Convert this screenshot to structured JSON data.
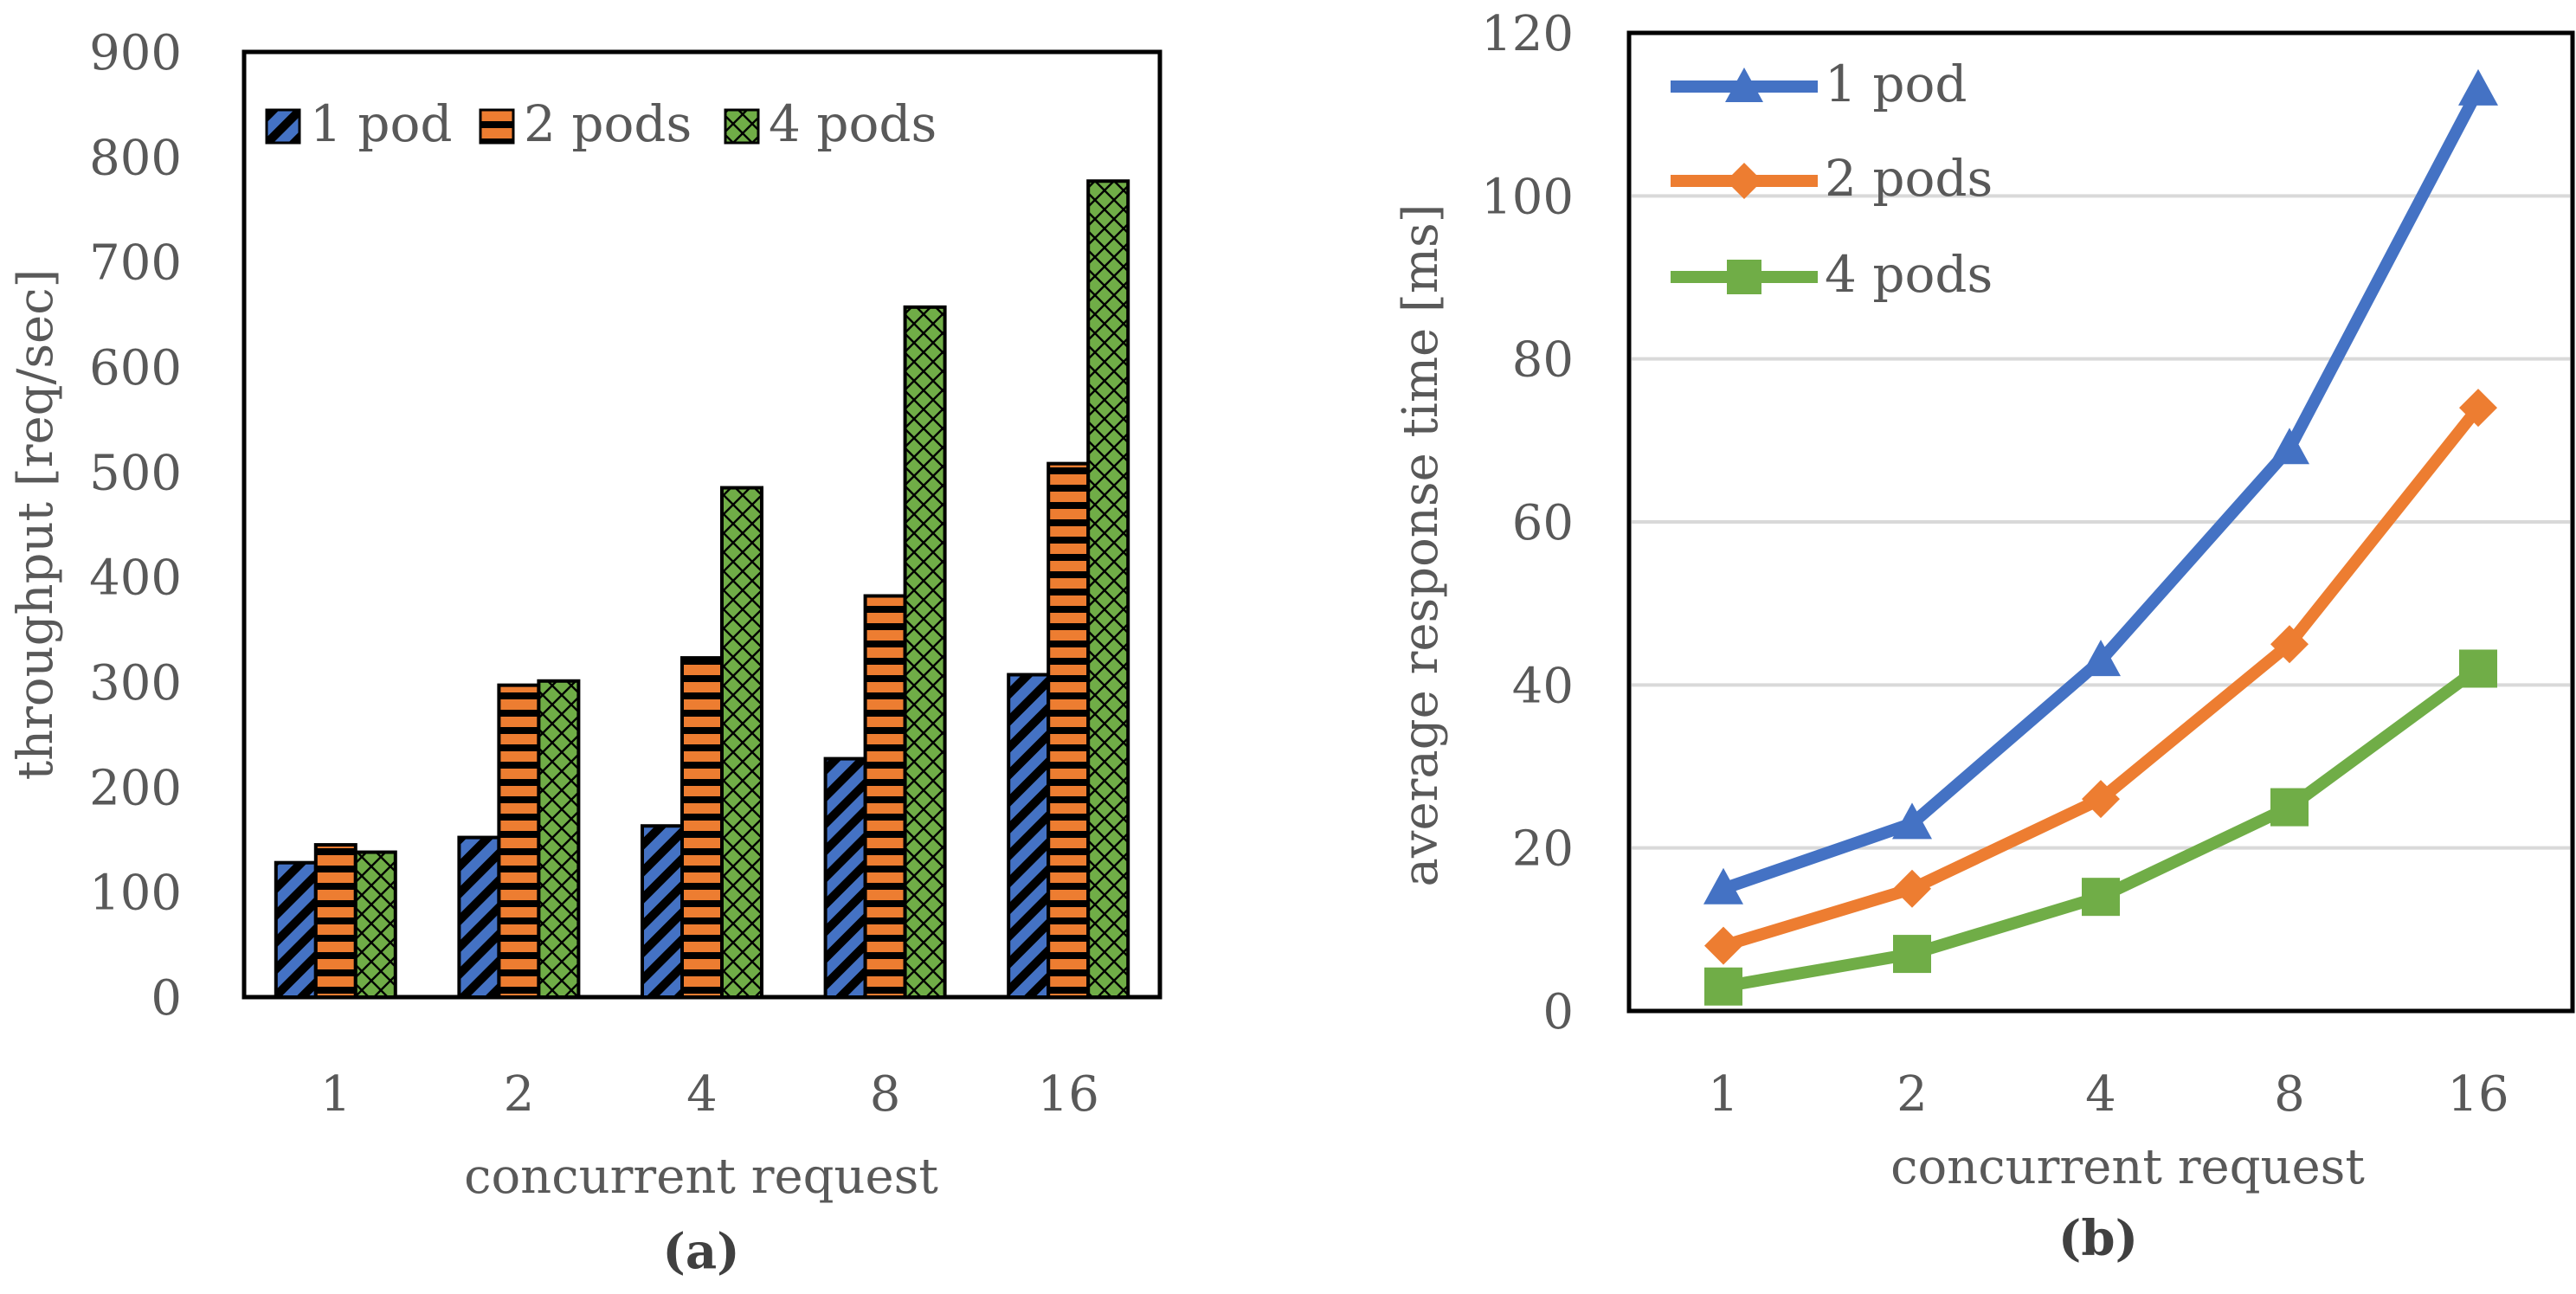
{
  "chart_data": [
    {
      "id": "a",
      "type": "bar",
      "caption": "(a)",
      "xlabel": "concurrent request",
      "ylabel": "throughput [req/sec]",
      "categories": [
        "1",
        "2",
        "4",
        "8",
        "16"
      ],
      "ylim": [
        0,
        900
      ],
      "yticks": [
        "0",
        "100",
        "200",
        "300",
        "400",
        "500",
        "600",
        "700",
        "800",
        "900"
      ],
      "grid": false,
      "legend_position": "top-left",
      "series": [
        {
          "name": "1 pod",
          "color": "#4472C4",
          "pattern": "diagonal",
          "values": [
            128,
            152,
            163,
            227,
            307
          ]
        },
        {
          "name": "2 pods",
          "color": "#ED7D31",
          "pattern": "horizontal",
          "values": [
            145,
            297,
            323,
            382,
            508
          ]
        },
        {
          "name": "4 pods",
          "color": "#70AD47",
          "pattern": "crosshatch",
          "values": [
            138,
            301,
            485,
            657,
            777
          ]
        }
      ]
    },
    {
      "id": "b",
      "type": "line",
      "caption": "(b)",
      "xlabel": "concurrent request",
      "ylabel": "average response time [ms]",
      "categories": [
        "1",
        "2",
        "4",
        "8",
        "16"
      ],
      "ylim": [
        0,
        120
      ],
      "yticks": [
        "0",
        "20",
        "40",
        "60",
        "80",
        "100",
        "120"
      ],
      "grid": true,
      "legend_position": "top-left",
      "series": [
        {
          "name": "1 pod",
          "color": "#4472C4",
          "marker": "triangle",
          "values": [
            15,
            23,
            43,
            69,
            113
          ]
        },
        {
          "name": "2 pods",
          "color": "#ED7D31",
          "marker": "diamond",
          "values": [
            8,
            15,
            26,
            45,
            74
          ]
        },
        {
          "name": "4 pods",
          "color": "#70AD47",
          "marker": "square",
          "values": [
            3,
            7,
            14,
            25,
            42
          ]
        }
      ]
    }
  ]
}
